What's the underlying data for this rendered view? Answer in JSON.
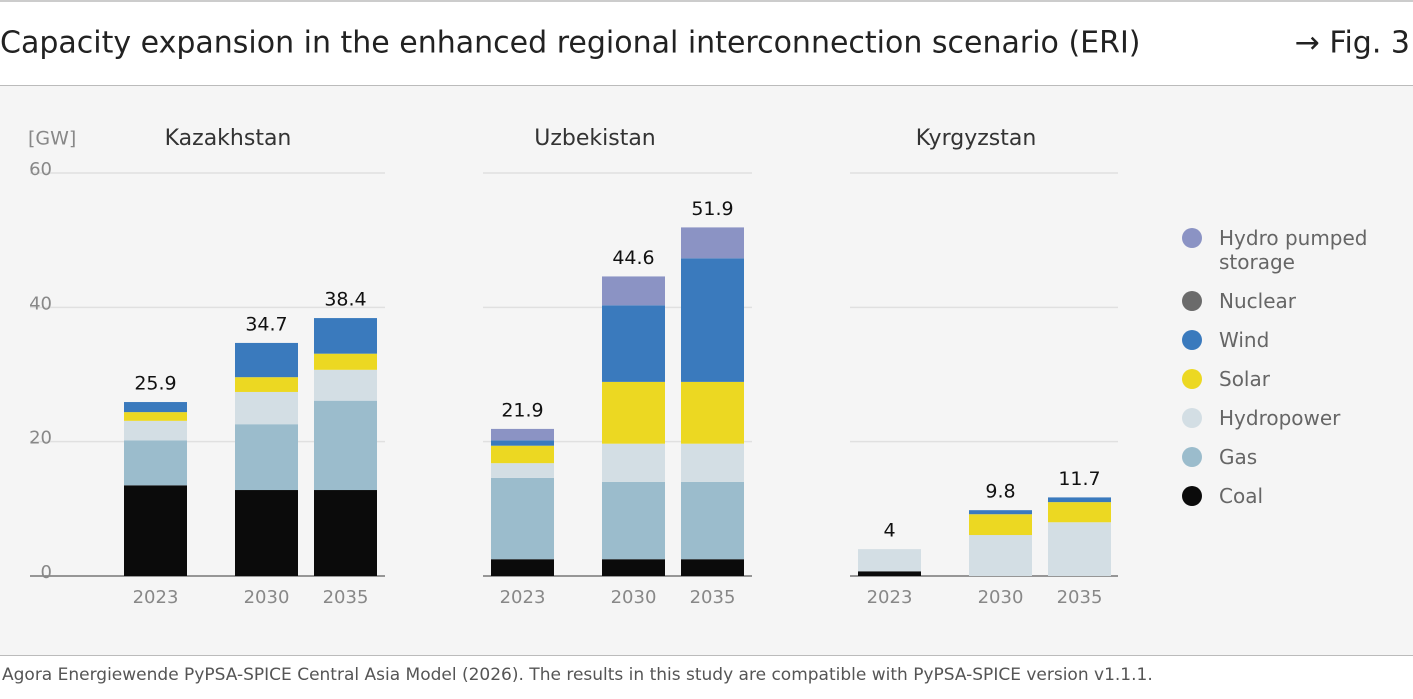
{
  "header": {
    "title": "Capacity expansion in the enhanced regional interconnection scenario (ERI)",
    "figure": "→ Fig. 3"
  },
  "unit": "[GW]",
  "footer": "Agora Energiewende PyPSA-SPICE Central Asia Model (2026). The results in this study are compatible with PyPSA-SPICE version v1.1.1.",
  "chart_data": [
    {
      "type": "stacked-bar",
      "title": "Kazakhstan",
      "categories": [
        "2023",
        "2030",
        "2035"
      ],
      "ylim": [
        0,
        60
      ],
      "yticks": [
        0,
        20,
        40,
        60
      ],
      "grid": true,
      "totals": [
        25.9,
        34.7,
        38.4
      ],
      "series": [
        {
          "name": "Coal",
          "color": "#0b0b0b",
          "values": [
            13.5,
            12.8,
            12.8
          ]
        },
        {
          "name": "Gas",
          "color": "#9bbccc",
          "values": [
            6.7,
            9.8,
            13.3
          ]
        },
        {
          "name": "Hydropower",
          "color": "#d3dee4",
          "values": [
            2.9,
            4.8,
            4.6
          ]
        },
        {
          "name": "Solar",
          "color": "#ecd822",
          "values": [
            1.3,
            2.2,
            2.4
          ]
        },
        {
          "name": "Wind",
          "color": "#3a7abd",
          "values": [
            1.5,
            5.1,
            5.3
          ]
        },
        {
          "name": "Nuclear",
          "color": "#6b6b6b",
          "values": [
            0,
            0,
            0
          ]
        },
        {
          "name": "Hydro pumped storage",
          "color": "#8b93c4",
          "values": [
            0,
            0,
            0
          ]
        }
      ]
    },
    {
      "type": "stacked-bar",
      "title": "Uzbekistan",
      "categories": [
        "2023",
        "2030",
        "2035"
      ],
      "ylim": [
        0,
        60
      ],
      "yticks": [
        0,
        20,
        40,
        60
      ],
      "grid": true,
      "totals": [
        21.9,
        44.6,
        51.9
      ],
      "series": [
        {
          "name": "Coal",
          "color": "#0b0b0b",
          "values": [
            2.5,
            2.5,
            2.5
          ]
        },
        {
          "name": "Gas",
          "color": "#9bbccc",
          "values": [
            12.1,
            11.5,
            11.5
          ]
        },
        {
          "name": "Hydropower",
          "color": "#d3dee4",
          "values": [
            2.2,
            5.7,
            5.7
          ]
        },
        {
          "name": "Solar",
          "color": "#ecd822",
          "values": [
            2.6,
            9.2,
            9.2
          ]
        },
        {
          "name": "Wind",
          "color": "#3a7abd",
          "values": [
            0.8,
            11.4,
            18.4
          ]
        },
        {
          "name": "Nuclear",
          "color": "#6b6b6b",
          "values": [
            0,
            0,
            0
          ]
        },
        {
          "name": "Hydro pumped storage",
          "color": "#8b93c4",
          "values": [
            1.7,
            4.3,
            4.6
          ]
        }
      ]
    },
    {
      "type": "stacked-bar",
      "title": "Kyrgyzstan",
      "categories": [
        "2023",
        "2030",
        "2035"
      ],
      "ylim": [
        0,
        60
      ],
      "yticks": [
        0,
        20,
        40,
        60
      ],
      "grid": true,
      "totals": [
        4,
        9.8,
        11.7
      ],
      "series": [
        {
          "name": "Coal",
          "color": "#0b0b0b",
          "values": [
            0.7,
            0,
            0
          ]
        },
        {
          "name": "Gas",
          "color": "#9bbccc",
          "values": [
            0,
            0,
            0
          ]
        },
        {
          "name": "Hydropower",
          "color": "#d3dee4",
          "values": [
            3.3,
            6.1,
            8.0
          ]
        },
        {
          "name": "Solar",
          "color": "#ecd822",
          "values": [
            0,
            3.1,
            3.0
          ]
        },
        {
          "name": "Wind",
          "color": "#3a7abd",
          "values": [
            0,
            0.6,
            0.7
          ]
        },
        {
          "name": "Nuclear",
          "color": "#6b6b6b",
          "values": [
            0,
            0,
            0
          ]
        },
        {
          "name": "Hydro pumped storage",
          "color": "#8b93c4",
          "values": [
            0,
            0,
            0
          ]
        }
      ]
    }
  ]
}
